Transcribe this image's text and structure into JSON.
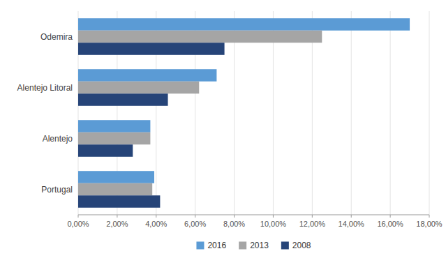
{
  "chart_data": {
    "type": "bar",
    "orientation": "horizontal",
    "categories": [
      "Portugal",
      "Alentejo",
      "Alentejo Litoral",
      "Odemira"
    ],
    "series": [
      {
        "name": "2016",
        "color": "#5B9BD5",
        "values": [
          0.039,
          0.037,
          0.071,
          0.17
        ]
      },
      {
        "name": "2013",
        "color": "#A5A5A5",
        "values": [
          0.038,
          0.037,
          0.062,
          0.125
        ]
      },
      {
        "name": "2008",
        "color": "#264478",
        "values": [
          0.042,
          0.028,
          0.046,
          0.075
        ]
      }
    ],
    "xlim": [
      0,
      0.18
    ],
    "xticks": [
      {
        "value": 0.0,
        "label": "0,00%"
      },
      {
        "value": 0.02,
        "label": "2,00%"
      },
      {
        "value": 0.04,
        "label": "4,00%"
      },
      {
        "value": 0.06,
        "label": "6,00%"
      },
      {
        "value": 0.08,
        "label": "8,00%"
      },
      {
        "value": 0.1,
        "label": "10,00%"
      },
      {
        "value": 0.12,
        "label": "12,00%"
      },
      {
        "value": 0.14,
        "label": "14,00%"
      },
      {
        "value": 0.16,
        "label": "16,00%"
      },
      {
        "value": 0.18,
        "label": "18,00%"
      }
    ],
    "grid": true,
    "legend": "bottom"
  }
}
